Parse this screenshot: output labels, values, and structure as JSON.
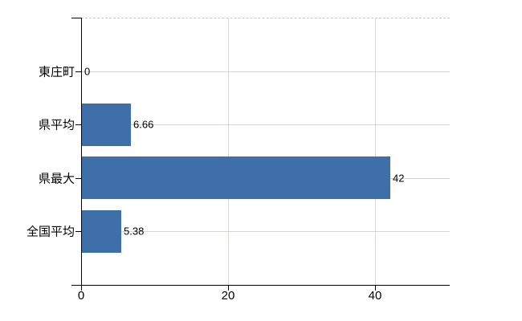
{
  "chart_data": {
    "type": "bar",
    "orientation": "horizontal",
    "title": "",
    "xlabel": "",
    "ylabel": "",
    "categories": [
      "東庄町",
      "県平均",
      "県最大",
      "全国平均"
    ],
    "values": [
      0,
      6.66,
      42,
      5.38
    ],
    "value_labels": [
      "0",
      "6.66",
      "42",
      "5.38"
    ],
    "x_ticks": [
      {
        "value": 0,
        "label": "0"
      },
      {
        "value": 20,
        "label": "20"
      },
      {
        "value": 40,
        "label": "40"
      }
    ],
    "xlim": [
      0,
      50
    ],
    "grid": "on",
    "legend": "none",
    "colors": {
      "bar": "#3f6fa8",
      "grid": "#d2d9d2",
      "plot_border_top": "#c6c6c6",
      "axis": "#000000",
      "text": "#000000",
      "background": "#ffffff"
    }
  }
}
